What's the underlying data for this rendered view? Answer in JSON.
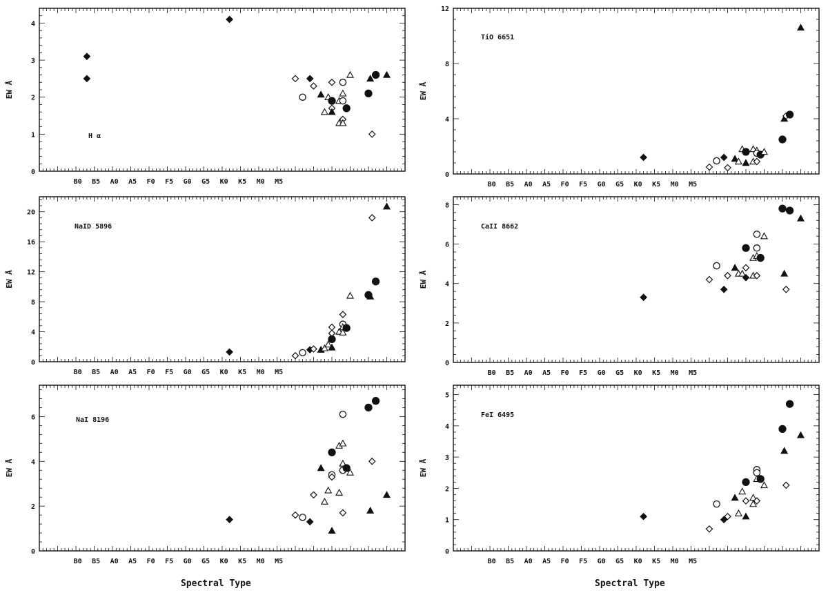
{
  "xlabel": "Spectral Type",
  "chart_data": [
    {
      "id": "halpha",
      "type": "scatter",
      "label": "H α",
      "ylabel": "EW Å",
      "xticks": [
        "B0",
        "B5",
        "A0",
        "A5",
        "F0",
        "F5",
        "G0",
        "G5",
        "K0",
        "K5",
        "M0",
        "M5"
      ],
      "ylim": [
        0,
        4.4
      ],
      "yticks": [
        0,
        1,
        2,
        3,
        4
      ],
      "points": [
        {
          "x": 3,
          "y": 3.1,
          "m": "filled-diamond"
        },
        {
          "x": 3,
          "y": 2.5,
          "m": "filled-diamond"
        },
        {
          "x": 42,
          "y": 4.1,
          "m": "filled-diamond"
        },
        {
          "x": 60,
          "y": 2.5,
          "m": "open-diamond"
        },
        {
          "x": 62,
          "y": 2.0,
          "m": "open-circle"
        },
        {
          "x": 64,
          "y": 2.5,
          "m": "filled-diamond"
        },
        {
          "x": 65,
          "y": 2.3,
          "m": "open-diamond"
        },
        {
          "x": 67,
          "y": 2.07,
          "m": "filled-triangle"
        },
        {
          "x": 68,
          "y": 1.6,
          "m": "open-triangle"
        },
        {
          "x": 69,
          "y": 2.0,
          "m": "open-triangle"
        },
        {
          "x": 70,
          "y": 2.4,
          "m": "open-diamond"
        },
        {
          "x": 70,
          "y": 1.9,
          "m": "filled-circle"
        },
        {
          "x": 70,
          "y": 1.7,
          "m": "open-diamond"
        },
        {
          "x": 70,
          "y": 1.6,
          "m": "filled-triangle"
        },
        {
          "x": 72,
          "y": 1.9,
          "m": "open-triangle"
        },
        {
          "x": 72,
          "y": 1.3,
          "m": "open-triangle"
        },
        {
          "x": 73,
          "y": 2.4,
          "m": "open-circle"
        },
        {
          "x": 73,
          "y": 2.1,
          "m": "open-triangle"
        },
        {
          "x": 73,
          "y": 1.9,
          "m": "open-circle"
        },
        {
          "x": 73,
          "y": 1.4,
          "m": "open-diamond"
        },
        {
          "x": 73,
          "y": 1.3,
          "m": "open-triangle"
        },
        {
          "x": 74,
          "y": 1.7,
          "m": "filled-circle"
        },
        {
          "x": 75,
          "y": 2.6,
          "m": "open-triangle"
        },
        {
          "x": 80,
          "y": 2.1,
          "m": "filled-circle"
        },
        {
          "x": 80.5,
          "y": 2.5,
          "m": "filled-triangle"
        },
        {
          "x": 81,
          "y": 1.0,
          "m": "open-diamond"
        },
        {
          "x": 82,
          "y": 2.6,
          "m": "filled-circle"
        },
        {
          "x": 85,
          "y": 2.6,
          "m": "filled-triangle"
        }
      ]
    },
    {
      "id": "tio",
      "type": "scatter",
      "label": "TiO 6651",
      "ylabel": "EW Å",
      "xticks": [
        "B0",
        "B5",
        "A0",
        "A5",
        "F0",
        "F5",
        "G0",
        "G5",
        "K0",
        "K5",
        "M0",
        "M5"
      ],
      "ylim": [
        0,
        12
      ],
      "yticks": [
        0,
        4,
        8,
        12
      ],
      "points": [
        {
          "x": 42,
          "y": 1.2,
          "m": "filled-diamond"
        },
        {
          "x": 60,
          "y": 0.5,
          "m": "open-diamond"
        },
        {
          "x": 62,
          "y": 0.95,
          "m": "open-circle"
        },
        {
          "x": 64,
          "y": 1.2,
          "m": "filled-diamond"
        },
        {
          "x": 65,
          "y": 0.45,
          "m": "open-diamond"
        },
        {
          "x": 67,
          "y": 1.1,
          "m": "filled-triangle"
        },
        {
          "x": 68,
          "y": 0.9,
          "m": "open-triangle"
        },
        {
          "x": 69,
          "y": 1.8,
          "m": "open-triangle"
        },
        {
          "x": 70,
          "y": 1.6,
          "m": "filled-circle"
        },
        {
          "x": 70,
          "y": 0.8,
          "m": "filled-triangle"
        },
        {
          "x": 72,
          "y": 1.8,
          "m": "open-triangle"
        },
        {
          "x": 72,
          "y": 0.9,
          "m": "open-triangle"
        },
        {
          "x": 73,
          "y": 1.7,
          "m": "open-triangle"
        },
        {
          "x": 73,
          "y": 1.5,
          "m": "open-circle"
        },
        {
          "x": 73,
          "y": 0.9,
          "m": "open-diamond"
        },
        {
          "x": 74,
          "y": 1.4,
          "m": "filled-circle"
        },
        {
          "x": 75,
          "y": 1.6,
          "m": "open-triangle"
        },
        {
          "x": 80,
          "y": 2.5,
          "m": "filled-circle"
        },
        {
          "x": 80.5,
          "y": 4.0,
          "m": "filled-triangle"
        },
        {
          "x": 81,
          "y": 4.2,
          "m": "open-diamond"
        },
        {
          "x": 82,
          "y": 4.3,
          "m": "filled-circle"
        },
        {
          "x": 85,
          "y": 10.6,
          "m": "filled-triangle"
        }
      ]
    },
    {
      "id": "naid",
      "type": "scatter",
      "label": "NaID 5896",
      "ylabel": "EW Å",
      "xticks": [
        "B0",
        "B5",
        "A0",
        "A5",
        "F0",
        "F5",
        "G0",
        "G5",
        "K0",
        "K5",
        "M0",
        "M5"
      ],
      "ylim": [
        0,
        22
      ],
      "yticks": [
        0,
        4,
        8,
        12,
        16,
        20
      ],
      "points": [
        {
          "x": 42,
          "y": 1.3,
          "m": "filled-diamond"
        },
        {
          "x": 60,
          "y": 0.8,
          "m": "open-diamond"
        },
        {
          "x": 62,
          "y": 1.2,
          "m": "open-circle"
        },
        {
          "x": 64,
          "y": 1.6,
          "m": "filled-diamond"
        },
        {
          "x": 65,
          "y": 1.7,
          "m": "open-diamond"
        },
        {
          "x": 67,
          "y": 1.6,
          "m": "filled-triangle"
        },
        {
          "x": 68,
          "y": 1.8,
          "m": "open-triangle"
        },
        {
          "x": 69,
          "y": 2.3,
          "m": "open-triangle"
        },
        {
          "x": 70,
          "y": 4.6,
          "m": "open-diamond"
        },
        {
          "x": 70,
          "y": 3.8,
          "m": "open-diamond"
        },
        {
          "x": 70,
          "y": 3.0,
          "m": "filled-circle"
        },
        {
          "x": 70,
          "y": 1.9,
          "m": "filled-triangle"
        },
        {
          "x": 72,
          "y": 4.0,
          "m": "open-triangle"
        },
        {
          "x": 73,
          "y": 6.3,
          "m": "open-diamond"
        },
        {
          "x": 73,
          "y": 5.0,
          "m": "open-circle"
        },
        {
          "x": 73,
          "y": 4.6,
          "m": "open-triangle"
        },
        {
          "x": 73,
          "y": 3.9,
          "m": "open-triangle"
        },
        {
          "x": 74,
          "y": 4.5,
          "m": "filled-circle"
        },
        {
          "x": 75,
          "y": 8.8,
          "m": "open-triangle"
        },
        {
          "x": 80,
          "y": 8.9,
          "m": "filled-circle"
        },
        {
          "x": 80.5,
          "y": 8.7,
          "m": "filled-triangle"
        },
        {
          "x": 81,
          "y": 19.2,
          "m": "open-diamond"
        },
        {
          "x": 82,
          "y": 10.7,
          "m": "filled-circle"
        },
        {
          "x": 85,
          "y": 20.7,
          "m": "filled-triangle"
        }
      ]
    },
    {
      "id": "caii",
      "type": "scatter",
      "label": "CaII 8662",
      "ylabel": "EW Å",
      "xticks": [
        "B0",
        "B5",
        "A0",
        "A5",
        "F0",
        "F5",
        "G0",
        "G5",
        "K0",
        "K5",
        "M0",
        "M5"
      ],
      "ylim": [
        0,
        8.4
      ],
      "yticks": [
        0,
        2,
        4,
        6,
        8
      ],
      "points": [
        {
          "x": 42,
          "y": 3.3,
          "m": "filled-diamond"
        },
        {
          "x": 60,
          "y": 4.2,
          "m": "open-diamond"
        },
        {
          "x": 62,
          "y": 4.9,
          "m": "open-circle"
        },
        {
          "x": 64,
          "y": 3.7,
          "m": "filled-diamond"
        },
        {
          "x": 65,
          "y": 4.4,
          "m": "open-diamond"
        },
        {
          "x": 67,
          "y": 4.8,
          "m": "filled-triangle"
        },
        {
          "x": 68,
          "y": 4.5,
          "m": "open-triangle"
        },
        {
          "x": 69,
          "y": 4.5,
          "m": "open-triangle"
        },
        {
          "x": 70,
          "y": 5.8,
          "m": "filled-circle"
        },
        {
          "x": 70,
          "y": 4.8,
          "m": "open-diamond"
        },
        {
          "x": 70,
          "y": 4.3,
          "m": "filled-diamond"
        },
        {
          "x": 72,
          "y": 5.3,
          "m": "open-triangle"
        },
        {
          "x": 72,
          "y": 4.4,
          "m": "open-triangle"
        },
        {
          "x": 73,
          "y": 6.5,
          "m": "open-circle"
        },
        {
          "x": 73,
          "y": 5.8,
          "m": "open-circle"
        },
        {
          "x": 73,
          "y": 5.4,
          "m": "open-triangle"
        },
        {
          "x": 73,
          "y": 4.4,
          "m": "open-diamond"
        },
        {
          "x": 74,
          "y": 5.3,
          "m": "filled-circle"
        },
        {
          "x": 75,
          "y": 6.4,
          "m": "open-triangle"
        },
        {
          "x": 80,
          "y": 7.8,
          "m": "filled-circle"
        },
        {
          "x": 80.5,
          "y": 4.5,
          "m": "filled-triangle"
        },
        {
          "x": 81,
          "y": 3.7,
          "m": "open-diamond"
        },
        {
          "x": 82,
          "y": 7.7,
          "m": "filled-circle"
        },
        {
          "x": 85,
          "y": 7.3,
          "m": "filled-triangle"
        }
      ]
    },
    {
      "id": "nai",
      "type": "scatter",
      "label": "NaI 8196",
      "ylabel": "EW Å",
      "xticks": [
        "B0",
        "B5",
        "A0",
        "A5",
        "F0",
        "F5",
        "G0",
        "G5",
        "K0",
        "K5",
        "M0",
        "M5"
      ],
      "ylim": [
        0,
        7.4
      ],
      "yticks": [
        0,
        2,
        4,
        6
      ],
      "points": [
        {
          "x": 42,
          "y": 1.4,
          "m": "filled-diamond"
        },
        {
          "x": 60,
          "y": 1.6,
          "m": "open-diamond"
        },
        {
          "x": 62,
          "y": 1.5,
          "m": "open-circle"
        },
        {
          "x": 64,
          "y": 1.3,
          "m": "filled-diamond"
        },
        {
          "x": 65,
          "y": 2.5,
          "m": "open-diamond"
        },
        {
          "x": 67,
          "y": 3.7,
          "m": "filled-triangle"
        },
        {
          "x": 68,
          "y": 2.2,
          "m": "open-triangle"
        },
        {
          "x": 69,
          "y": 2.7,
          "m": "open-triangle"
        },
        {
          "x": 70,
          "y": 4.4,
          "m": "filled-circle"
        },
        {
          "x": 70,
          "y": 3.4,
          "m": "open-circle"
        },
        {
          "x": 70,
          "y": 3.3,
          "m": "open-diamond"
        },
        {
          "x": 70,
          "y": 0.9,
          "m": "filled-triangle"
        },
        {
          "x": 72,
          "y": 4.7,
          "m": "open-triangle"
        },
        {
          "x": 72,
          "y": 2.6,
          "m": "open-triangle"
        },
        {
          "x": 73,
          "y": 6.1,
          "m": "open-circle"
        },
        {
          "x": 73,
          "y": 4.8,
          "m": "open-triangle"
        },
        {
          "x": 73,
          "y": 3.9,
          "m": "open-triangle"
        },
        {
          "x": 73,
          "y": 3.6,
          "m": "open-circle"
        },
        {
          "x": 73,
          "y": 1.7,
          "m": "open-diamond"
        },
        {
          "x": 74,
          "y": 3.7,
          "m": "filled-circle"
        },
        {
          "x": 75,
          "y": 3.5,
          "m": "open-triangle"
        },
        {
          "x": 80,
          "y": 6.4,
          "m": "filled-circle"
        },
        {
          "x": 80.5,
          "y": 1.8,
          "m": "filled-triangle"
        },
        {
          "x": 81,
          "y": 4.0,
          "m": "open-diamond"
        },
        {
          "x": 82,
          "y": 6.7,
          "m": "filled-circle"
        },
        {
          "x": 85,
          "y": 2.5,
          "m": "filled-triangle"
        }
      ]
    },
    {
      "id": "fei",
      "type": "scatter",
      "label": "FeI 6495",
      "ylabel": "EW Å",
      "xticks": [
        "B0",
        "B5",
        "A0",
        "A5",
        "F0",
        "F5",
        "G0",
        "G5",
        "K0",
        "K5",
        "M0",
        "M5"
      ],
      "ylim": [
        0,
        5.3
      ],
      "yticks": [
        0,
        1,
        2,
        3,
        4,
        5
      ],
      "points": [
        {
          "x": 42,
          "y": 1.1,
          "m": "filled-diamond"
        },
        {
          "x": 60,
          "y": 0.7,
          "m": "open-diamond"
        },
        {
          "x": 62,
          "y": 1.5,
          "m": "open-circle"
        },
        {
          "x": 64,
          "y": 1.0,
          "m": "filled-diamond"
        },
        {
          "x": 65,
          "y": 1.1,
          "m": "open-diamond"
        },
        {
          "x": 67,
          "y": 1.7,
          "m": "filled-triangle"
        },
        {
          "x": 68,
          "y": 1.2,
          "m": "open-triangle"
        },
        {
          "x": 69,
          "y": 1.9,
          "m": "open-triangle"
        },
        {
          "x": 70,
          "y": 2.2,
          "m": "filled-circle"
        },
        {
          "x": 70,
          "y": 1.6,
          "m": "open-diamond"
        },
        {
          "x": 70,
          "y": 1.1,
          "m": "filled-triangle"
        },
        {
          "x": 72,
          "y": 1.7,
          "m": "open-triangle"
        },
        {
          "x": 72,
          "y": 1.5,
          "m": "open-triangle"
        },
        {
          "x": 73,
          "y": 2.6,
          "m": "open-circle"
        },
        {
          "x": 73,
          "y": 2.5,
          "m": "open-circle"
        },
        {
          "x": 73,
          "y": 2.3,
          "m": "open-triangle"
        },
        {
          "x": 73,
          "y": 1.6,
          "m": "open-diamond"
        },
        {
          "x": 74,
          "y": 2.3,
          "m": "filled-circle"
        },
        {
          "x": 75,
          "y": 2.1,
          "m": "open-triangle"
        },
        {
          "x": 80,
          "y": 3.9,
          "m": "filled-circle"
        },
        {
          "x": 80.5,
          "y": 3.2,
          "m": "filled-triangle"
        },
        {
          "x": 81,
          "y": 2.1,
          "m": "open-diamond"
        },
        {
          "x": 82,
          "y": 4.7,
          "m": "filled-circle"
        },
        {
          "x": 85,
          "y": 3.7,
          "m": "filled-triangle"
        }
      ]
    }
  ]
}
